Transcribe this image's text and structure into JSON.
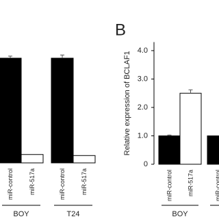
{
  "charts": [
    {
      "chart_data": {
        "type": "bar",
        "categories": [
          "miR-control",
          "miR-517a",
          "miR-control",
          "miR-517a"
        ],
        "groups": [
          "BOY",
          "T24"
        ],
        "values": [
          1.0,
          0.08,
          1.0,
          0.07
        ],
        "errors": [
          0.02,
          0.0,
          0.03,
          0.0
        ],
        "colors": [
          "#000000",
          "#ffffff",
          "#000000",
          "#ffffff"
        ],
        "ylim": [
          0,
          1.1
        ]
      }
    },
    {
      "chart_data": {
        "type": "bar",
        "panel_label": "B",
        "y_label": "Relative expression of BCLAF1",
        "categories": [
          "miR-control",
          "miR-517a",
          "miR-control"
        ],
        "groups": [
          "BOY",
          null
        ],
        "values": [
          1.0,
          2.5,
          1.0
        ],
        "errors": [
          0.03,
          0.12,
          0.0
        ],
        "colors": [
          "#000000",
          "#ffffff",
          "#000000"
        ],
        "ylim": [
          0,
          4.3
        ],
        "yticks": [
          0,
          {
            "value": 1,
            "label": "1.0"
          },
          {
            "value": 2,
            "label": "2.0"
          },
          {
            "value": 3,
            "label": "3.0"
          },
          {
            "value": 4,
            "label": "4.0"
          }
        ]
      }
    }
  ]
}
